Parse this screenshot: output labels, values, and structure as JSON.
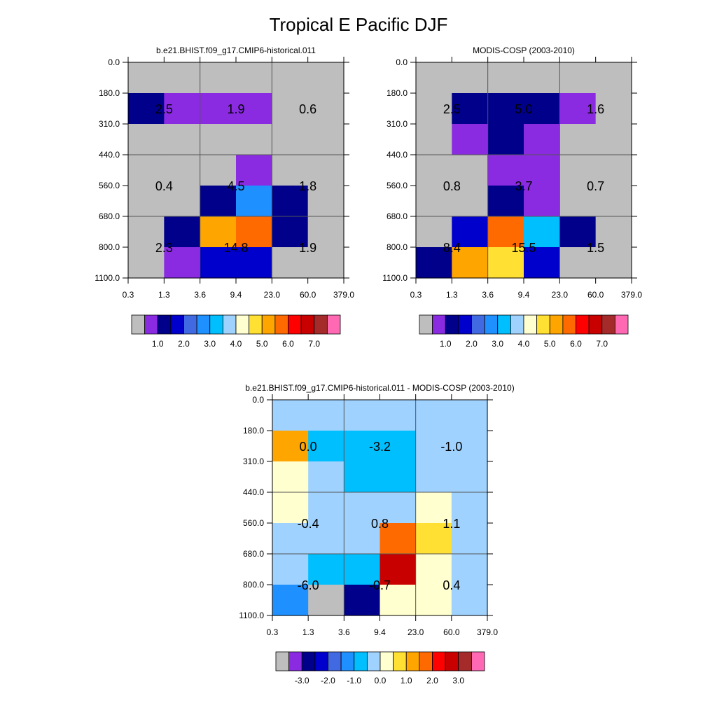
{
  "title": "Tropical E Pacific DJF",
  "chart_data": [
    {
      "type": "heatmap",
      "title": "b.e21.BHIST.f09_g17.CMIP6-historical.011",
      "x_ticks": [
        "0.3",
        "1.3",
        "3.6",
        "9.4",
        "23.0",
        "60.0",
        "379.0"
      ],
      "y_ticks": [
        "0.0",
        "180.0",
        "310.0",
        "440.0",
        "560.0",
        "680.0",
        "800.0",
        "1100.0"
      ],
      "cells": [
        [
          "#bebebe",
          "#bebebe",
          "#bebebe",
          "#bebebe",
          "#bebebe",
          "#bebebe"
        ],
        [
          "#00008b",
          "#8a2be2",
          "#8a2be2",
          "#8a2be2",
          "#bebebe",
          "#bebebe"
        ],
        [
          "#bebebe",
          "#bebebe",
          "#bebebe",
          "#bebebe",
          "#bebebe",
          "#bebebe"
        ],
        [
          "#bebebe",
          "#bebebe",
          "#bebebe",
          "#8a2be2",
          "#bebebe",
          "#bebebe"
        ],
        [
          "#bebebe",
          "#bebebe",
          "#00008b",
          "#1e90ff",
          "#00008b",
          "#bebebe"
        ],
        [
          "#bebebe",
          "#00008b",
          "#ffa500",
          "#ff6a00",
          "#00008b",
          "#bebebe"
        ],
        [
          "#bebebe",
          "#8a2be2",
          "#0000cd",
          "#0000cd",
          "#bebebe",
          "#bebebe"
        ]
      ],
      "annotations": [
        {
          "col": 1,
          "row": 1.5,
          "text": "2.5"
        },
        {
          "col": 3,
          "row": 1.5,
          "text": "1.9"
        },
        {
          "col": 5,
          "row": 1.5,
          "text": "0.6"
        },
        {
          "col": 1,
          "row": 4,
          "text": "0.4"
        },
        {
          "col": 3,
          "row": 4,
          "text": "4.5"
        },
        {
          "col": 5,
          "row": 4,
          "text": "1.8"
        },
        {
          "col": 1,
          "row": 6,
          "text": "2.3"
        },
        {
          "col": 3,
          "row": 6,
          "text": "14.8"
        },
        {
          "col": 5,
          "row": 6,
          "text": "1.9"
        }
      ],
      "colorbar": {
        "colors": [
          "#bebebe",
          "#8a2be2",
          "#00008b",
          "#0000cd",
          "#4169e1",
          "#1e90ff",
          "#00bfff",
          "#a0d2ff",
          "#ffffd0",
          "#ffe033",
          "#ffa500",
          "#ff6a00",
          "#ff0000",
          "#c80000",
          "#a52a2a",
          "#ff69b4"
        ],
        "labels": [
          "1.0",
          "2.0",
          "3.0",
          "4.0",
          "5.0",
          "6.0",
          "7.0"
        ],
        "label_boundaries": [
          2,
          4,
          6,
          8,
          10,
          12,
          14
        ]
      }
    },
    {
      "type": "heatmap",
      "title": "MODIS-COSP (2003-2010)",
      "x_ticks": [
        "0.3",
        "1.3",
        "3.6",
        "9.4",
        "23.0",
        "60.0",
        "379.0"
      ],
      "y_ticks": [
        "0.0",
        "180.0",
        "310.0",
        "440.0",
        "560.0",
        "680.0",
        "800.0",
        "1100.0"
      ],
      "cells": [
        [
          "#bebebe",
          "#bebebe",
          "#bebebe",
          "#bebebe",
          "#bebebe",
          "#bebebe"
        ],
        [
          "#bebebe",
          "#00008b",
          "#00008b",
          "#00008b",
          "#8a2be2",
          "#bebebe"
        ],
        [
          "#bebebe",
          "#8a2be2",
          "#00008b",
          "#8a2be2",
          "#bebebe",
          "#bebebe"
        ],
        [
          "#bebebe",
          "#bebebe",
          "#8a2be2",
          "#8a2be2",
          "#bebebe",
          "#bebebe"
        ],
        [
          "#bebebe",
          "#bebebe",
          "#00008b",
          "#8a2be2",
          "#bebebe",
          "#bebebe"
        ],
        [
          "#bebebe",
          "#0000cd",
          "#ff6a00",
          "#00bfff",
          "#00008b",
          "#bebebe"
        ],
        [
          "#00008b",
          "#ffa500",
          "#ffe033",
          "#0000cd",
          "#bebebe",
          "#bebebe"
        ]
      ],
      "annotations": [
        {
          "col": 1,
          "row": 1.5,
          "text": "2.5"
        },
        {
          "col": 3,
          "row": 1.5,
          "text": "5.0"
        },
        {
          "col": 5,
          "row": 1.5,
          "text": "1.6"
        },
        {
          "col": 1,
          "row": 4,
          "text": "0.8"
        },
        {
          "col": 3,
          "row": 4,
          "text": "3.7"
        },
        {
          "col": 5,
          "row": 4,
          "text": "0.7"
        },
        {
          "col": 1,
          "row": 6,
          "text": "8.4"
        },
        {
          "col": 3,
          "row": 6,
          "text": "15.5"
        },
        {
          "col": 5,
          "row": 6,
          "text": "1.5"
        }
      ],
      "colorbar": {
        "colors": [
          "#bebebe",
          "#8a2be2",
          "#00008b",
          "#0000cd",
          "#4169e1",
          "#1e90ff",
          "#00bfff",
          "#a0d2ff",
          "#ffffd0",
          "#ffe033",
          "#ffa500",
          "#ff6a00",
          "#ff0000",
          "#c80000",
          "#a52a2a",
          "#ff69b4"
        ],
        "labels": [
          "1.0",
          "2.0",
          "3.0",
          "4.0",
          "5.0",
          "6.0",
          "7.0"
        ],
        "label_boundaries": [
          2,
          4,
          6,
          8,
          10,
          12,
          14
        ]
      }
    },
    {
      "type": "heatmap",
      "title": "b.e21.BHIST.f09_g17.CMIP6-historical.011 - MODIS-COSP (2003-2010)",
      "x_ticks": [
        "0.3",
        "1.3",
        "3.6",
        "9.4",
        "23.0",
        "60.0",
        "379.0"
      ],
      "y_ticks": [
        "0.0",
        "180.0",
        "310.0",
        "440.0",
        "560.0",
        "680.0",
        "800.0",
        "1100.0"
      ],
      "cells": [
        [
          "#a0d2ff",
          "#a0d2ff",
          "#a0d2ff",
          "#a0d2ff",
          "#a0d2ff",
          "#a0d2ff"
        ],
        [
          "#ffa500",
          "#00bfff",
          "#00bfff",
          "#00bfff",
          "#a0d2ff",
          "#a0d2ff"
        ],
        [
          "#ffffd0",
          "#a0d2ff",
          "#00bfff",
          "#00bfff",
          "#a0d2ff",
          "#a0d2ff"
        ],
        [
          "#ffffd0",
          "#a0d2ff",
          "#a0d2ff",
          "#a0d2ff",
          "#ffffd0",
          "#a0d2ff"
        ],
        [
          "#a0d2ff",
          "#a0d2ff",
          "#a0d2ff",
          "#ff6a00",
          "#ffe033",
          "#a0d2ff"
        ],
        [
          "#a0d2ff",
          "#00bfff",
          "#00bfff",
          "#c80000",
          "#ffffd0",
          "#a0d2ff"
        ],
        [
          "#1e90ff",
          "#bebebe",
          "#00008b",
          "#ffffd0",
          "#ffffd0",
          "#a0d2ff"
        ]
      ],
      "annotations": [
        {
          "col": 1,
          "row": 1.5,
          "text": "0.0"
        },
        {
          "col": 3,
          "row": 1.5,
          "text": "-3.2"
        },
        {
          "col": 5,
          "row": 1.5,
          "text": "-1.0"
        },
        {
          "col": 1,
          "row": 4,
          "text": "-0.4"
        },
        {
          "col": 3,
          "row": 4,
          "text": "0.8"
        },
        {
          "col": 5,
          "row": 4,
          "text": "1.1"
        },
        {
          "col": 1,
          "row": 6,
          "text": "-6.0"
        },
        {
          "col": 3,
          "row": 6,
          "text": "-0.7"
        },
        {
          "col": 5,
          "row": 6,
          "text": "0.4"
        }
      ],
      "colorbar": {
        "colors": [
          "#bebebe",
          "#8a2be2",
          "#00008b",
          "#0000cd",
          "#4169e1",
          "#1e90ff",
          "#00bfff",
          "#a0d2ff",
          "#ffffd0",
          "#ffe033",
          "#ffa500",
          "#ff6a00",
          "#ff0000",
          "#c80000",
          "#a52a2a",
          "#ff69b4"
        ],
        "labels": [
          "-3.0",
          "-2.0",
          "-1.0",
          "0.0",
          "1.0",
          "2.0",
          "3.0"
        ],
        "label_boundaries": [
          2,
          4,
          6,
          8,
          10,
          12,
          14
        ]
      }
    }
  ]
}
